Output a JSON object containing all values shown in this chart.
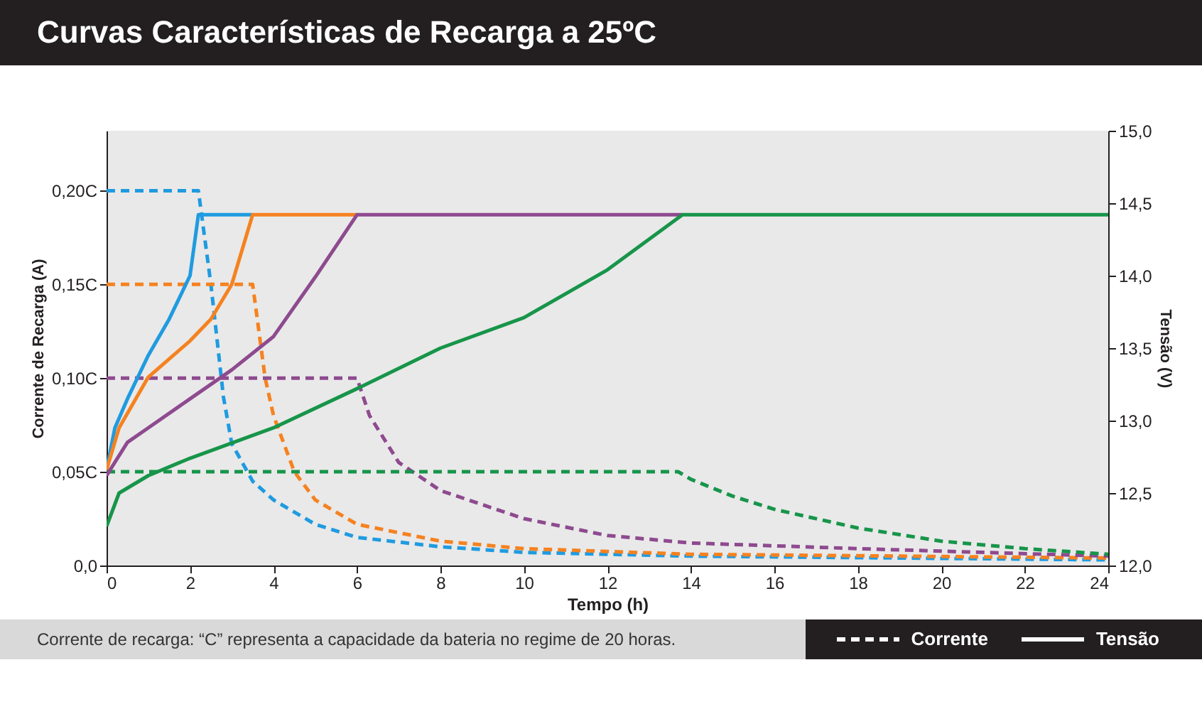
{
  "chart_data": {
    "type": "line",
    "title": "Curvas Características de Recarga a 25ºC",
    "xlabel": "Tempo (h)",
    "ylabel": "Corrente de Recarga (A)",
    "y2label": "Tensão (V)",
    "annotations": [
      "Corrente de recarga: “C” representa a capacidade da bateria no regime de 20 horas.",
      "Corrente",
      "Tensão"
    ],
    "xlim": [
      0,
      24
    ],
    "xticks": [
      0,
      2,
      4,
      6,
      8,
      10,
      12,
      14,
      16,
      18,
      20,
      22,
      24
    ],
    "ylim": [
      0,
      0.232
    ],
    "yticks": [
      {
        "value": 0,
        "label": "0,0"
      },
      {
        "value": 0.05,
        "label": "0,05C"
      },
      {
        "value": 0.1,
        "label": "0,10C"
      },
      {
        "value": 0.15,
        "label": "0,15C"
      },
      {
        "value": 0.2,
        "label": "0,20C"
      }
    ],
    "y2lim": [
      12,
      15
    ],
    "y2ticks": [
      {
        "value": 12,
        "label": "12,0"
      },
      {
        "value": 12.5,
        "label": "12,5"
      },
      {
        "value": 13,
        "label": "13,0"
      },
      {
        "value": 13.5,
        "label": "13,5"
      },
      {
        "value": 14,
        "label": "14,0"
      },
      {
        "value": 14.5,
        "label": "14,5"
      },
      {
        "value": 15,
        "label": "15,0"
      }
    ],
    "grid": false,
    "series": [
      {
        "axis": "y",
        "line_style": "dashed",
        "color": "#1f9be0",
        "x": [
          0,
          2.2,
          2.5,
          2.8,
          3,
          3.5,
          4,
          5,
          6,
          8,
          10,
          14,
          24
        ],
        "values": [
          0.2,
          0.2,
          0.15,
          0.09,
          0.065,
          0.045,
          0.035,
          0.022,
          0.015,
          0.01,
          0.007,
          0.005,
          0.003
        ]
      },
      {
        "axis": "y",
        "line_style": "dashed",
        "color": "#f58220",
        "x": [
          0,
          3.5,
          3.8,
          4,
          4.5,
          5,
          6,
          8,
          10,
          14,
          24
        ],
        "values": [
          0.15,
          0.15,
          0.1,
          0.08,
          0.05,
          0.035,
          0.022,
          0.013,
          0.009,
          0.006,
          0.004
        ]
      },
      {
        "axis": "y",
        "line_style": "dashed",
        "color": "#8e4a8f",
        "x": [
          0,
          6,
          6.3,
          7,
          8,
          10,
          12,
          14,
          18,
          24
        ],
        "values": [
          0.1,
          0.1,
          0.08,
          0.055,
          0.04,
          0.025,
          0.016,
          0.012,
          0.009,
          0.005
        ]
      },
      {
        "axis": "y",
        "line_style": "dashed",
        "color": "#17954a",
        "x": [
          0,
          13.7,
          14,
          15,
          16,
          18,
          20,
          22,
          24
        ],
        "values": [
          0.05,
          0.05,
          0.046,
          0.037,
          0.03,
          0.02,
          0.013,
          0.009,
          0.006
        ]
      },
      {
        "axis": "y2",
        "line_style": "solid",
        "color": "#1f9be0",
        "x": [
          0,
          0.2,
          0.5,
          1,
          1.5,
          2,
          2.2,
          3.5
        ],
        "values": [
          12.66,
          12.95,
          13.15,
          13.45,
          13.7,
          14.0,
          14.42,
          14.42
        ]
      },
      {
        "axis": "y2",
        "line_style": "solid",
        "color": "#f58220",
        "x": [
          0,
          0.3,
          1,
          2,
          2.5,
          3,
          3.5,
          6
        ],
        "values": [
          12.66,
          12.95,
          13.3,
          13.55,
          13.7,
          13.94,
          14.42,
          14.42
        ]
      },
      {
        "axis": "y2",
        "line_style": "solid",
        "color": "#8e4a8f",
        "x": [
          0,
          0.5,
          1,
          2,
          3,
          4,
          5,
          6,
          13.8
        ],
        "values": [
          12.62,
          12.85,
          12.95,
          13.15,
          13.35,
          13.58,
          13.99,
          14.42,
          14.42
        ]
      },
      {
        "axis": "y2",
        "line_style": "solid",
        "color": "#17954a",
        "x": [
          0,
          0.3,
          1,
          2,
          4,
          6,
          8,
          10,
          12,
          13.8,
          24
        ],
        "values": [
          12.27,
          12.5,
          12.62,
          12.74,
          12.95,
          13.22,
          13.5,
          13.71,
          14.04,
          14.42,
          14.42
        ]
      }
    ]
  }
}
